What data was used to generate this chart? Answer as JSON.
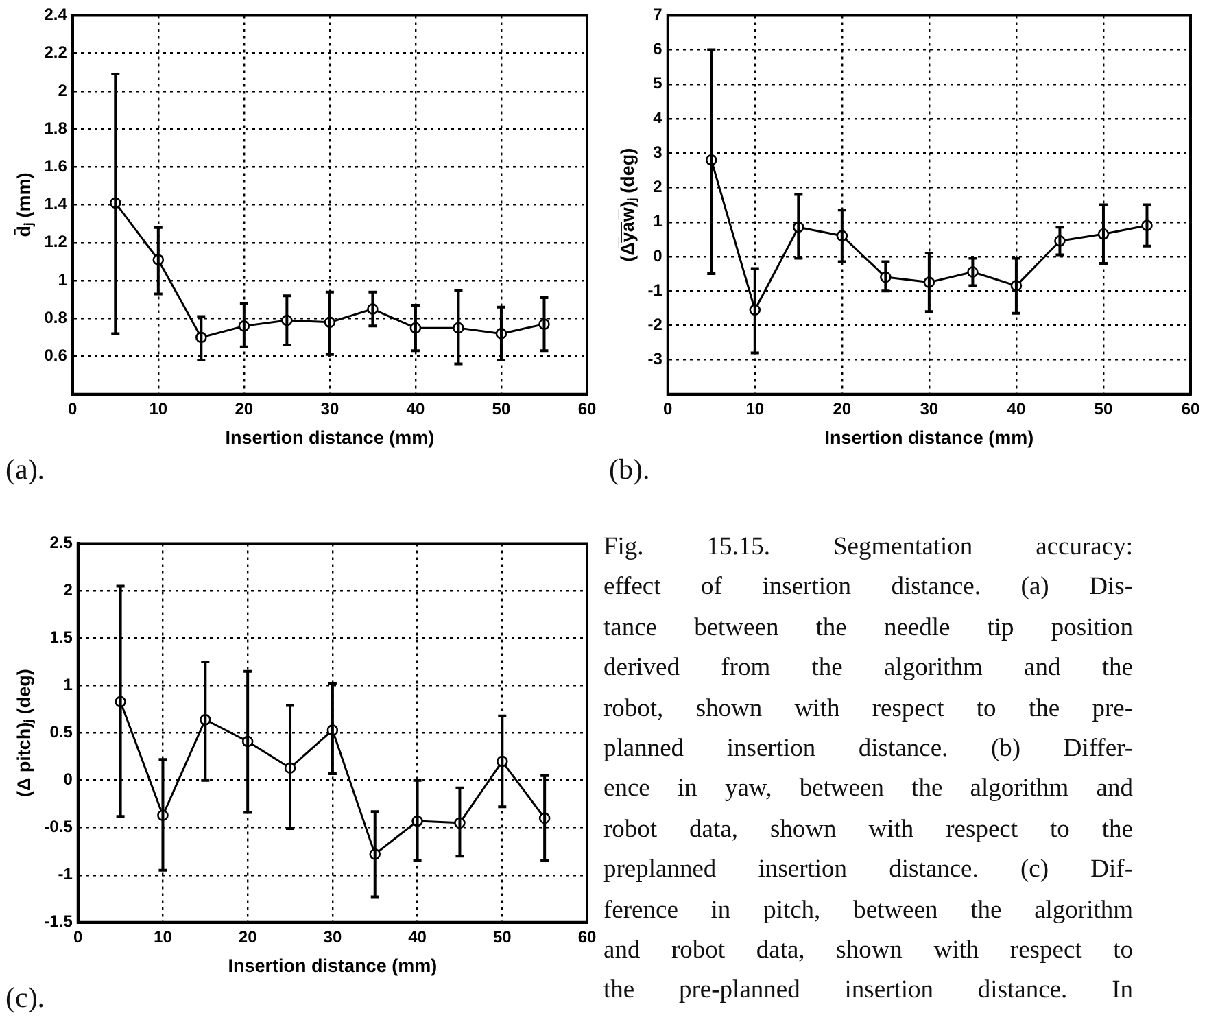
{
  "chart_data": [
    {
      "type": "line",
      "xlabel": "Insertion distance (mm)",
      "ylabel": "d̄ⱼ (mm)",
      "x": [
        5,
        10,
        15,
        20,
        25,
        30,
        35,
        40,
        45,
        50,
        55
      ],
      "series": [
        {
          "color": "#000000",
          "values": [
            1.41,
            1.11,
            0.7,
            0.76,
            0.79,
            0.78,
            0.85,
            0.75,
            0.75,
            0.72,
            0.77
          ],
          "errors": [
            [
              0.72,
              2.09
            ],
            [
              0.93,
              1.28
            ],
            [
              0.58,
              0.81
            ],
            [
              0.65,
              0.88
            ],
            [
              0.66,
              0.92
            ],
            [
              0.61,
              0.94
            ],
            [
              0.76,
              0.94
            ],
            [
              0.63,
              0.87
            ],
            [
              0.56,
              0.95
            ],
            [
              0.58,
              0.86
            ],
            [
              0.63,
              0.91
            ]
          ]
        }
      ],
      "xlim": [
        0,
        60
      ],
      "xticks": [
        0,
        10,
        20,
        30,
        40,
        50,
        60
      ],
      "ylim": [
        0.4,
        2.4
      ],
      "yticks": [
        0.6,
        0.8,
        1,
        1.2,
        1.4,
        1.6,
        1.8,
        2,
        2.2,
        2.4
      ],
      "grid": true,
      "legend": false,
      "marker": "circle",
      "line_style": "solid",
      "annotations": [
        "(a)."
      ]
    },
    {
      "type": "line",
      "xlabel": "Insertion distance (mm)",
      "ylabel": "(Δ̅y̅a̅w̅)ⱼ (deg)",
      "x": [
        5,
        10,
        15,
        20,
        25,
        30,
        35,
        40,
        45,
        50,
        55
      ],
      "series": [
        {
          "color": "#000000",
          "values": [
            2.8,
            -1.55,
            0.85,
            0.6,
            -0.6,
            -0.75,
            -0.45,
            -0.85,
            0.45,
            0.65,
            0.9
          ],
          "errors": [
            [
              -0.5,
              6.0
            ],
            [
              -2.8,
              -0.35
            ],
            [
              -0.05,
              1.8
            ],
            [
              -0.15,
              1.35
            ],
            [
              -1.0,
              -0.15
            ],
            [
              -1.6,
              0.1
            ],
            [
              -0.85,
              -0.05
            ],
            [
              -1.65,
              -0.05
            ],
            [
              0.05,
              0.85
            ],
            [
              -0.2,
              1.5
            ],
            [
              0.3,
              1.5
            ]
          ]
        }
      ],
      "xlim": [
        0,
        60
      ],
      "xticks": [
        0,
        10,
        20,
        30,
        40,
        50,
        60
      ],
      "ylim": [
        -4,
        7
      ],
      "yticks": [
        -3,
        -2,
        -1,
        0,
        1,
        2,
        3,
        4,
        5,
        6,
        7
      ],
      "grid": true,
      "legend": false,
      "marker": "circle",
      "line_style": "solid",
      "annotations": [
        "(b)."
      ]
    },
    {
      "type": "line",
      "xlabel": "Insertion distance (mm)",
      "ylabel": "(Δ pitch)ⱼ (deg)",
      "x": [
        5,
        10,
        15,
        20,
        25,
        30,
        35,
        40,
        45,
        50,
        55
      ],
      "series": [
        {
          "color": "#000000",
          "values": [
            0.83,
            -0.37,
            0.64,
            0.41,
            0.13,
            0.53,
            -0.78,
            -0.43,
            -0.45,
            0.2,
            -0.4
          ],
          "errors": [
            [
              -0.38,
              2.05
            ],
            [
              -0.95,
              0.22
            ],
            [
              0,
              1.25
            ],
            [
              -0.34,
              1.15
            ],
            [
              -0.51,
              0.79
            ],
            [
              0.07,
              1.02
            ],
            [
              -1.23,
              -0.33
            ],
            [
              -0.85,
              0
            ],
            [
              -0.8,
              -0.08
            ],
            [
              -0.28,
              0.68
            ],
            [
              -0.85,
              0.05
            ]
          ]
        }
      ],
      "xlim": [
        0,
        60
      ],
      "xticks": [
        0,
        10,
        20,
        30,
        40,
        50,
        60
      ],
      "ylim": [
        -1.5,
        2.5
      ],
      "yticks": [
        -1.5,
        -1,
        -0.5,
        0,
        0.5,
        1,
        1.5,
        2,
        2.5
      ],
      "grid": true,
      "legend": false,
      "marker": "circle",
      "line_style": "solid",
      "annotations": [
        "(c)."
      ]
    },
    {
      "type": "other",
      "annotations": [
        "Fig. 15.15. Segmentation accuracy:",
        "effect of insertion distance. (a) Dis-",
        "tance between the needle tip position",
        "derived from the algorithm and the",
        "robot, shown with respect to the pre-",
        "planned insertion distance. (b) Differ-",
        "ence in yaw, between the algorithm and",
        "robot data, shown with respect to the",
        "preplanned insertion distance. (c) Dif-",
        "ference in pitch, between the algorithm",
        "and robot data, shown with respect to",
        "the pre-planned insertion distance. In"
      ]
    }
  ]
}
